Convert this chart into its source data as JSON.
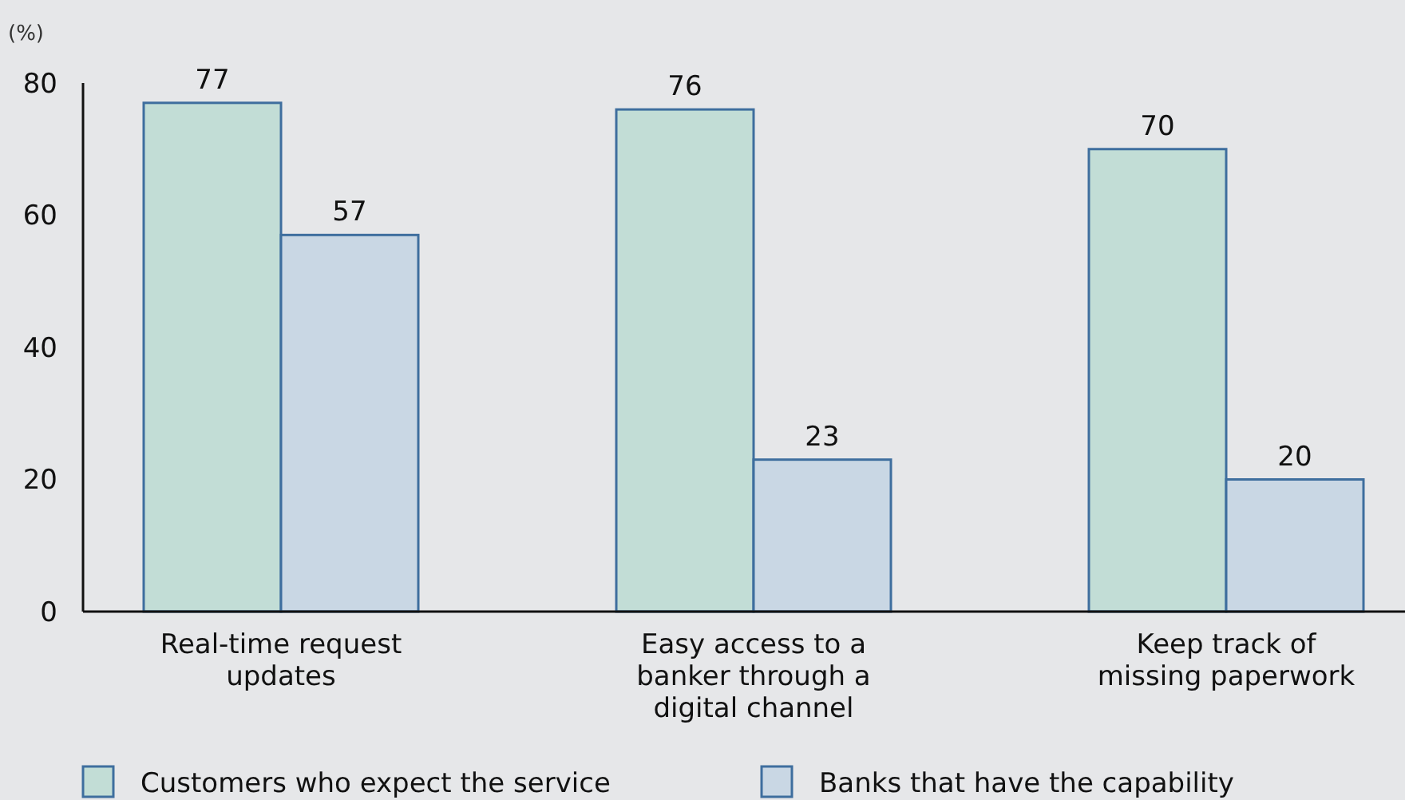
{
  "chart_data": {
    "type": "bar",
    "ylabel": "(%)",
    "categories": [
      "Real-time request updates",
      "Easy access to a banker through a digital channel",
      "Keep track of missing paperwork"
    ],
    "series": [
      {
        "name": "Customers who expect the service",
        "color": "#c2ddd6",
        "values": [
          77,
          76,
          70
        ]
      },
      {
        "name": "Banks that have the capability",
        "color": "#c9d7e4",
        "values": [
          57,
          23,
          20
        ]
      }
    ],
    "ylim": [
      0,
      80
    ],
    "yticks": [
      0,
      20,
      40,
      60,
      80
    ],
    "data_labels": true,
    "legend": "bottom",
    "grid": false
  }
}
